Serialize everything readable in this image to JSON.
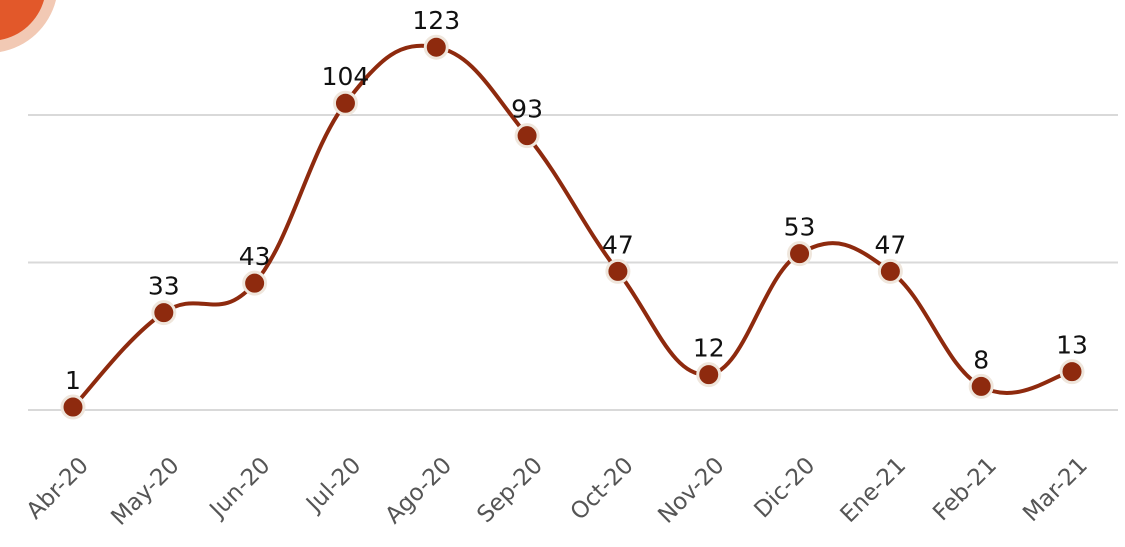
{
  "chart_data": {
    "type": "line",
    "categories": [
      "Abr-20",
      "May-20",
      "Jun-20",
      "Jul-20",
      "Ago-20",
      "Sep-20",
      "Oct-20",
      "Nov-20",
      "Dic-20",
      "Ene-21",
      "Feb-21",
      "Mar-21"
    ],
    "series": [
      {
        "color": "#8e2a0e",
        "values": [
          1,
          33,
          43,
          104,
          123,
          93,
          47,
          12,
          53,
          47,
          8,
          13
        ]
      }
    ],
    "ylim": [
      0,
      139
    ],
    "yticks": [
      0,
      50,
      100
    ],
    "grid": true
  }
}
